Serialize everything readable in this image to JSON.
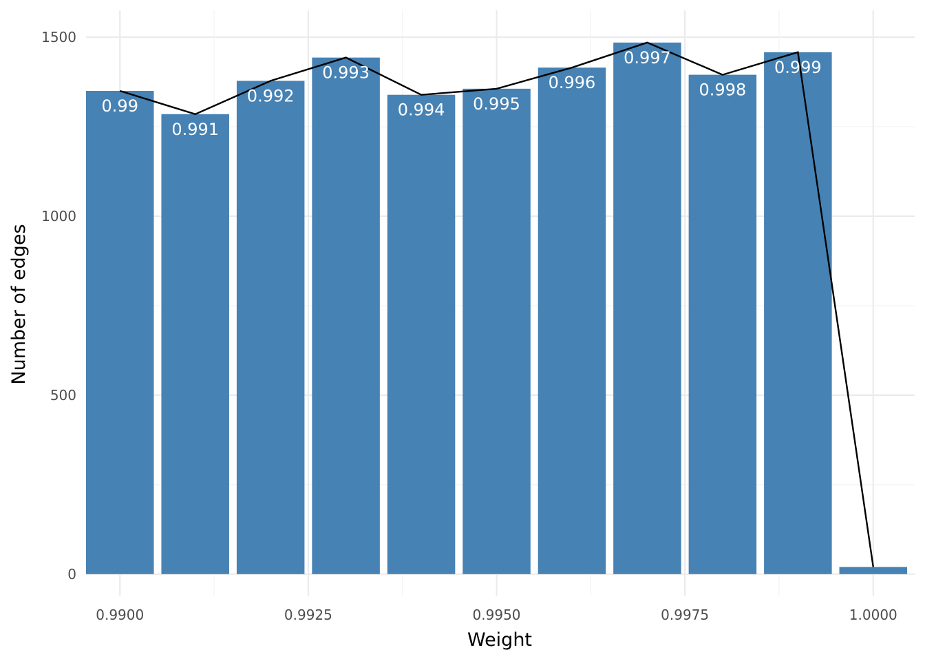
{
  "chart_data": {
    "type": "bar",
    "xlabel": "Weight",
    "ylabel": "Number of edges",
    "xlim": [
      0.98955,
      1.00055
    ],
    "ylim": [
      -60,
      1575
    ],
    "x_ticks": [
      0.99,
      0.9925,
      0.995,
      0.9975,
      1.0
    ],
    "x_tick_labels": [
      "0.9900",
      "0.9925",
      "0.9950",
      "0.9975",
      "1.0000"
    ],
    "y_ticks": [
      0,
      500,
      1000,
      1500
    ],
    "y_tick_labels": [
      "0",
      "500",
      "1000",
      "1500"
    ],
    "grid": true,
    "bar_color": "#4682b4",
    "line_color": "#000000",
    "bars": [
      {
        "x": 0.99,
        "value": 1350,
        "label": "0.99"
      },
      {
        "x": 0.991,
        "value": 1285,
        "label": "0.991"
      },
      {
        "x": 0.992,
        "value": 1378,
        "label": "0.992"
      },
      {
        "x": 0.993,
        "value": 1443,
        "label": "0.993"
      },
      {
        "x": 0.994,
        "value": 1339,
        "label": "0.994"
      },
      {
        "x": 0.995,
        "value": 1356,
        "label": "0.995"
      },
      {
        "x": 0.996,
        "value": 1415,
        "label": "0.996"
      },
      {
        "x": 0.997,
        "value": 1485,
        "label": "0.997"
      },
      {
        "x": 0.998,
        "value": 1395,
        "label": "0.998"
      },
      {
        "x": 0.999,
        "value": 1458,
        "label": "0.999"
      },
      {
        "x": 1.0,
        "value": 20,
        "label": ""
      }
    ],
    "bar_width": 0.0009
  }
}
